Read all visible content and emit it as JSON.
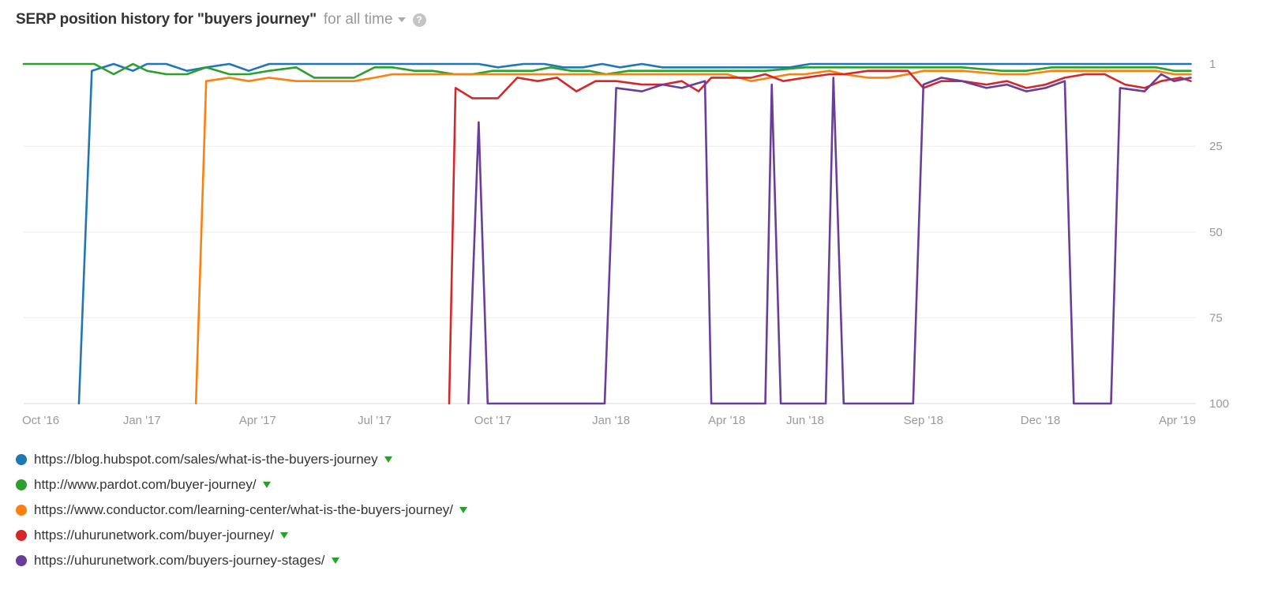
{
  "header": {
    "title": "SERP position history for \"buyers journey\"",
    "period": "for all time",
    "help_symbol": "?"
  },
  "chart_data": {
    "type": "line",
    "title": "SERP position history for \"buyers journey\"",
    "x_range": [
      "2016-10-01",
      "2019-04-01"
    ],
    "ylim": [
      1,
      100
    ],
    "y_inverted": true,
    "y_ticks": [
      1,
      25,
      50,
      75,
      100
    ],
    "y_tick_labels": [
      "1",
      "25",
      "50",
      "75",
      "100"
    ],
    "x_ticks": [
      {
        "date": "2016-10-01",
        "label": "Oct '16"
      },
      {
        "date": "2017-01-01",
        "label": "Jan '17"
      },
      {
        "date": "2017-04-01",
        "label": "Apr '17"
      },
      {
        "date": "2017-07-01",
        "label": "Jul '17"
      },
      {
        "date": "2017-10-01",
        "label": "Oct '17"
      },
      {
        "date": "2018-01-01",
        "label": "Jan '18"
      },
      {
        "date": "2018-04-01",
        "label": "Apr '18"
      },
      {
        "date": "2018-06-01",
        "label": "Jun '18"
      },
      {
        "date": "2018-09-01",
        "label": "Sep '18"
      },
      {
        "date": "2018-12-01",
        "label": "Dec '18"
      },
      {
        "date": "2019-04-01",
        "label": "Apr '19"
      }
    ],
    "grid": true,
    "legend_position": "bottom",
    "series": [
      {
        "name": "https://blog.hubspot.com/sales/what-is-the-buyers-journey",
        "color": "#1f77b4",
        "points": [
          [
            "2016-11-13",
            100
          ],
          [
            "2016-11-23",
            3
          ],
          [
            "2016-12-10",
            1
          ],
          [
            "2016-12-25",
            3
          ],
          [
            "2017-01-05",
            1
          ],
          [
            "2017-01-20",
            1
          ],
          [
            "2017-02-05",
            3
          ],
          [
            "2017-02-20",
            2
          ],
          [
            "2017-03-10",
            1
          ],
          [
            "2017-03-25",
            3
          ],
          [
            "2017-04-10",
            1
          ],
          [
            "2017-05-01",
            1
          ],
          [
            "2017-06-01",
            1
          ],
          [
            "2017-07-01",
            1
          ],
          [
            "2017-08-01",
            1
          ],
          [
            "2017-09-01",
            1
          ],
          [
            "2017-09-20",
            1
          ],
          [
            "2017-10-05",
            2
          ],
          [
            "2017-10-25",
            1
          ],
          [
            "2017-11-10",
            1
          ],
          [
            "2017-11-25",
            2
          ],
          [
            "2017-12-10",
            2
          ],
          [
            "2017-12-25",
            1
          ],
          [
            "2018-01-08",
            2
          ],
          [
            "2018-01-25",
            1
          ],
          [
            "2018-02-10",
            2
          ],
          [
            "2018-03-01",
            2
          ],
          [
            "2018-04-01",
            2
          ],
          [
            "2018-05-01",
            2
          ],
          [
            "2018-05-20",
            2
          ],
          [
            "2018-06-05",
            1
          ],
          [
            "2018-07-01",
            1
          ],
          [
            "2018-08-01",
            1
          ],
          [
            "2018-09-01",
            1
          ],
          [
            "2018-10-01",
            1
          ],
          [
            "2018-11-01",
            1
          ],
          [
            "2018-12-01",
            1
          ],
          [
            "2019-01-01",
            1
          ],
          [
            "2019-02-01",
            1
          ],
          [
            "2019-03-01",
            1
          ],
          [
            "2019-03-28",
            1
          ]
        ]
      },
      {
        "name": "http://www.pardot.com/buyer-journey/",
        "color": "#2ca02c",
        "points": [
          [
            "2016-10-01",
            1
          ],
          [
            "2016-11-01",
            1
          ],
          [
            "2016-11-25",
            1
          ],
          [
            "2016-12-10",
            4
          ],
          [
            "2016-12-25",
            1
          ],
          [
            "2017-01-05",
            3
          ],
          [
            "2017-01-20",
            4
          ],
          [
            "2017-02-05",
            4
          ],
          [
            "2017-02-20",
            2
          ],
          [
            "2017-03-10",
            4
          ],
          [
            "2017-03-25",
            4
          ],
          [
            "2017-04-10",
            3
          ],
          [
            "2017-05-01",
            2
          ],
          [
            "2017-05-15",
            5
          ],
          [
            "2017-06-01",
            5
          ],
          [
            "2017-06-15",
            5
          ],
          [
            "2017-07-01",
            2
          ],
          [
            "2017-07-15",
            2
          ],
          [
            "2017-08-01",
            3
          ],
          [
            "2017-08-15",
            3
          ],
          [
            "2017-09-01",
            4
          ],
          [
            "2017-09-15",
            4
          ],
          [
            "2017-10-01",
            3
          ],
          [
            "2017-10-20",
            3
          ],
          [
            "2017-11-01",
            3
          ],
          [
            "2017-11-15",
            2
          ],
          [
            "2017-12-01",
            3
          ],
          [
            "2017-12-15",
            3
          ],
          [
            "2017-12-28",
            4
          ],
          [
            "2018-01-15",
            3
          ],
          [
            "2018-02-01",
            3
          ],
          [
            "2018-03-01",
            3
          ],
          [
            "2018-04-01",
            3
          ],
          [
            "2018-05-01",
            3
          ],
          [
            "2018-06-01",
            2
          ],
          [
            "2018-07-01",
            2
          ],
          [
            "2018-08-01",
            2
          ],
          [
            "2018-09-01",
            2
          ],
          [
            "2018-10-01",
            2
          ],
          [
            "2018-11-01",
            3
          ],
          [
            "2018-11-20",
            3
          ],
          [
            "2018-12-10",
            2
          ],
          [
            "2019-01-01",
            2
          ],
          [
            "2019-02-01",
            2
          ],
          [
            "2019-03-01",
            2
          ],
          [
            "2019-03-15",
            3
          ],
          [
            "2019-03-28",
            3
          ]
        ]
      },
      {
        "name": "https://www.conductor.com/learning-center/what-is-the-buyers-journey/",
        "color": "#ff7f0e",
        "points": [
          [
            "2017-02-12",
            100
          ],
          [
            "2017-02-20",
            6
          ],
          [
            "2017-03-10",
            5
          ],
          [
            "2017-03-25",
            6
          ],
          [
            "2017-04-10",
            5
          ],
          [
            "2017-05-01",
            6
          ],
          [
            "2017-06-01",
            6
          ],
          [
            "2017-06-15",
            6
          ],
          [
            "2017-07-01",
            5
          ],
          [
            "2017-07-15",
            4
          ],
          [
            "2017-08-01",
            4
          ],
          [
            "2017-09-01",
            4
          ],
          [
            "2017-10-01",
            4
          ],
          [
            "2017-11-01",
            4
          ],
          [
            "2017-12-01",
            4
          ],
          [
            "2018-01-01",
            4
          ],
          [
            "2018-02-01",
            4
          ],
          [
            "2018-03-01",
            4
          ],
          [
            "2018-04-01",
            4
          ],
          [
            "2018-04-20",
            6
          ],
          [
            "2018-05-05",
            5
          ],
          [
            "2018-05-20",
            4
          ],
          [
            "2018-06-01",
            4
          ],
          [
            "2018-06-20",
            3
          ],
          [
            "2018-07-01",
            4
          ],
          [
            "2018-07-20",
            5
          ],
          [
            "2018-08-05",
            5
          ],
          [
            "2018-08-20",
            4
          ],
          [
            "2018-09-01",
            3
          ],
          [
            "2018-09-15",
            3
          ],
          [
            "2018-10-01",
            3
          ],
          [
            "2018-11-01",
            4
          ],
          [
            "2018-11-20",
            4
          ],
          [
            "2018-12-10",
            3
          ],
          [
            "2019-01-01",
            3
          ],
          [
            "2019-02-01",
            3
          ],
          [
            "2019-03-01",
            3
          ],
          [
            "2019-03-15",
            4
          ],
          [
            "2019-03-28",
            4
          ]
        ]
      },
      {
        "name": "https://uhurunetwork.com/buyer-journey/",
        "color": "#d62728",
        "points": [
          [
            "2017-08-28",
            100
          ],
          [
            "2017-09-02",
            8
          ],
          [
            "2017-09-15",
            11
          ],
          [
            "2017-10-05",
            11
          ],
          [
            "2017-10-20",
            5
          ],
          [
            "2017-11-05",
            6
          ],
          [
            "2017-11-20",
            5
          ],
          [
            "2017-12-05",
            9
          ],
          [
            "2017-12-20",
            6
          ],
          [
            "2018-01-05",
            6
          ],
          [
            "2018-01-25",
            7
          ],
          [
            "2018-02-10",
            7
          ],
          [
            "2018-02-25",
            6
          ],
          [
            "2018-03-10",
            9
          ],
          [
            "2018-03-20",
            5
          ],
          [
            "2018-04-01",
            5
          ],
          [
            "2018-04-20",
            5
          ],
          [
            "2018-05-01",
            4
          ],
          [
            "2018-05-15",
            6
          ],
          [
            "2018-06-01",
            5
          ],
          [
            "2018-06-20",
            4
          ],
          [
            "2018-07-01",
            4
          ],
          [
            "2018-07-20",
            3
          ],
          [
            "2018-08-05",
            3
          ],
          [
            "2018-08-20",
            3
          ],
          [
            "2018-09-01",
            8
          ],
          [
            "2018-09-15",
            6
          ],
          [
            "2018-10-01",
            6
          ],
          [
            "2018-10-20",
            7
          ],
          [
            "2018-11-05",
            6
          ],
          [
            "2018-11-20",
            8
          ],
          [
            "2018-12-05",
            7
          ],
          [
            "2018-12-20",
            5
          ],
          [
            "2019-01-05",
            4
          ],
          [
            "2019-01-20",
            4
          ],
          [
            "2019-02-05",
            7
          ],
          [
            "2019-02-20",
            8
          ],
          [
            "2019-03-05",
            6
          ],
          [
            "2019-03-20",
            5
          ],
          [
            "2019-03-28",
            6
          ]
        ]
      },
      {
        "name": "https://uhurunetwork.com/buyers-journey-stages/",
        "color": "#6a3d9a",
        "points": [
          [
            "2017-09-12",
            100
          ],
          [
            "2017-09-20",
            18
          ],
          [
            "2017-09-27",
            100
          ],
          [
            "2017-12-27",
            100
          ],
          [
            "2018-01-05",
            8
          ],
          [
            "2018-01-25",
            9
          ],
          [
            "2018-02-10",
            7
          ],
          [
            "2018-02-25",
            8
          ],
          [
            "2018-03-15",
            6
          ],
          [
            "2018-03-20",
            100
          ],
          [
            "2018-05-01",
            100
          ],
          [
            "2018-05-06",
            7
          ],
          [
            "2018-05-13",
            100
          ],
          [
            "2018-06-17",
            100
          ],
          [
            "2018-06-23",
            5
          ],
          [
            "2018-07-01",
            100
          ],
          [
            "2018-08-24",
            100
          ],
          [
            "2018-09-01",
            7
          ],
          [
            "2018-09-15",
            5
          ],
          [
            "2018-10-01",
            6
          ],
          [
            "2018-10-20",
            8
          ],
          [
            "2018-11-05",
            7
          ],
          [
            "2018-11-20",
            9
          ],
          [
            "2018-12-05",
            8
          ],
          [
            "2018-12-20",
            6
          ],
          [
            "2018-12-27",
            100
          ],
          [
            "2019-01-25",
            100
          ],
          [
            "2019-02-01",
            8
          ],
          [
            "2019-02-20",
            9
          ],
          [
            "2019-03-05",
            4
          ],
          [
            "2019-03-15",
            6
          ],
          [
            "2019-03-28",
            5
          ]
        ]
      }
    ]
  }
}
